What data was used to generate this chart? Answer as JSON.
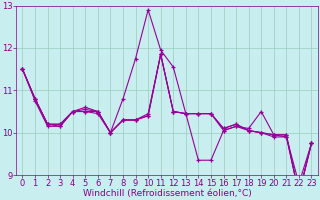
{
  "x": [
    0,
    1,
    2,
    3,
    4,
    5,
    6,
    7,
    8,
    9,
    10,
    11,
    12,
    13,
    14,
    15,
    16,
    17,
    18,
    19,
    20,
    21,
    22,
    23
  ],
  "series": [
    [
      11.5,
      10.8,
      10.2,
      10.2,
      10.5,
      10.6,
      10.5,
      10.0,
      10.3,
      10.3,
      10.45,
      11.85,
      10.5,
      10.45,
      10.45,
      10.45,
      10.1,
      10.2,
      10.05,
      10.0,
      9.95,
      9.95,
      8.55,
      9.75
    ],
    [
      11.5,
      10.8,
      10.2,
      10.2,
      10.5,
      10.5,
      10.5,
      10.0,
      10.8,
      11.75,
      12.9,
      11.95,
      11.55,
      10.45,
      9.35,
      9.35,
      10.05,
      10.15,
      10.1,
      10.5,
      9.95,
      9.9,
      8.8,
      9.75
    ],
    [
      11.5,
      10.8,
      10.2,
      10.15,
      10.5,
      10.55,
      10.5,
      10.0,
      10.3,
      10.3,
      10.4,
      11.85,
      10.5,
      10.45,
      10.45,
      10.45,
      10.1,
      10.2,
      10.05,
      10.0,
      9.95,
      9.95,
      8.55,
      9.75
    ],
    [
      11.5,
      10.75,
      10.15,
      10.15,
      10.5,
      10.5,
      10.45,
      10.0,
      10.3,
      10.3,
      10.4,
      11.85,
      10.5,
      10.45,
      10.45,
      10.45,
      10.05,
      10.15,
      10.05,
      10.0,
      9.9,
      9.9,
      8.55,
      9.75
    ]
  ],
  "line_color": "#990099",
  "marker": "+",
  "markersize": 3.5,
  "linewidth": 0.8,
  "bg_color": "#c8eef0",
  "grid_color": "#99ccbb",
  "xlim": [
    -0.5,
    23.5
  ],
  "ylim": [
    9.0,
    13.0
  ],
  "yticks": [
    9,
    10,
    11,
    12,
    13
  ],
  "xticks": [
    0,
    1,
    2,
    3,
    4,
    5,
    6,
    7,
    8,
    9,
    10,
    11,
    12,
    13,
    14,
    15,
    16,
    17,
    18,
    19,
    20,
    21,
    22,
    23
  ],
  "xlabel": "Windchill (Refroidissement éolien,°C)",
  "axis_label_fontsize": 6.5,
  "tick_fontsize": 6.0,
  "label_color": "#880088"
}
